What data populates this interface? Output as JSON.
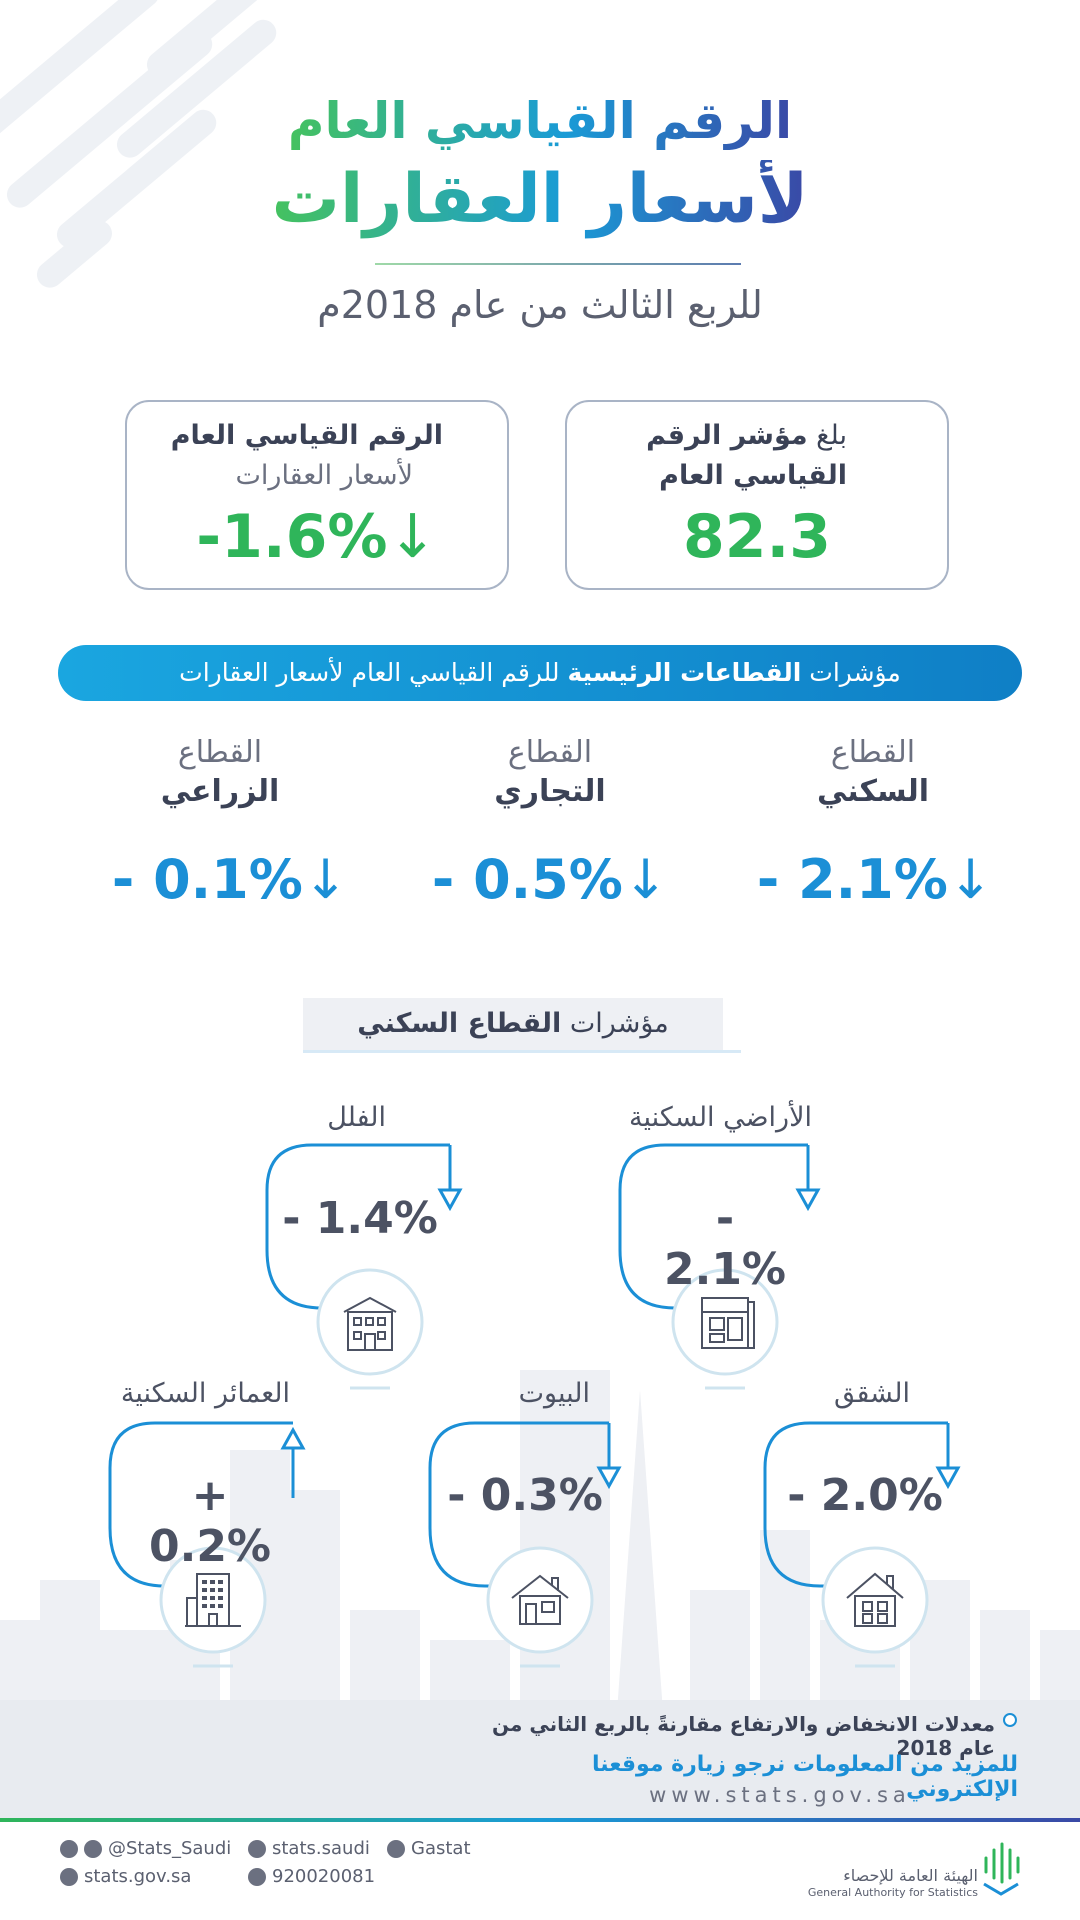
{
  "header": {
    "title_line1": "الرقم القياسي العام",
    "title_line2": "لأسعار العقارات",
    "subtitle": "للربع الثالث من عام 2018م"
  },
  "cards": {
    "index_value": {
      "prefix": "بلغ ",
      "label_bold": "مؤشر الرقم",
      "label_line2": "القياسي العام",
      "value": "82.3"
    },
    "general_change": {
      "label_line1": "الرقم القياسي العام",
      "label_line2": "لأسعار العقارات",
      "value": "-1.6%",
      "direction": "down"
    }
  },
  "sectors_bar": {
    "prefix": "مؤشرات ",
    "bold": "القطاعات الرئيسية",
    "suffix": " للرقم القياسي العام لأسعار العقارات"
  },
  "sectors": [
    {
      "line1": "القطاع",
      "line2": "السكني",
      "value": "- 2.1%",
      "direction": "down"
    },
    {
      "line1": "القطاع",
      "line2": "التجاري",
      "value": "- 0.5%",
      "direction": "down"
    },
    {
      "line1": "القطاع",
      "line2": "الزراعي",
      "value": "- 0.1%",
      "direction": "down"
    }
  ],
  "residential_header": {
    "prefix": "مؤشرات ",
    "bold": "القطاع السكني"
  },
  "residential": [
    {
      "label": "الأراضي السكنية",
      "value": "- 2.1%",
      "direction": "down",
      "icon": "land-plan-icon"
    },
    {
      "label": "الفلل",
      "value": "- 1.4%",
      "direction": "down",
      "icon": "villa-icon"
    },
    {
      "label": "الشقق",
      "value": "- 2.0%",
      "direction": "down",
      "icon": "apartment-icon"
    },
    {
      "label": "البيوت",
      "value": "- 0.3%",
      "direction": "down",
      "icon": "house-icon"
    },
    {
      "label": "العمائر السكنية",
      "value": "+ 0.2%",
      "direction": "up",
      "icon": "building-icon"
    }
  ],
  "footer": {
    "note": "معدلات الانخفاض والارتفاع مقارنةً بالربع الثاني من عام 2018",
    "more_info": "للمزيد من المعلومات نرجو زيارة موقعنا الإلكتروني",
    "url": "www.stats.gov.sa",
    "social": {
      "handle": "@Stats_Saudi",
      "facebook": "stats.saudi",
      "linkedin": "Gastat",
      "website": "stats.gov.sa",
      "phone": "920020081"
    },
    "org_ar": "الهيئة العامة للإحصاء",
    "org_en": "General Authority for Statistics"
  },
  "colors": {
    "green": "#2fb55a",
    "blue": "#1b8fd6",
    "dark": "#3b4256"
  }
}
